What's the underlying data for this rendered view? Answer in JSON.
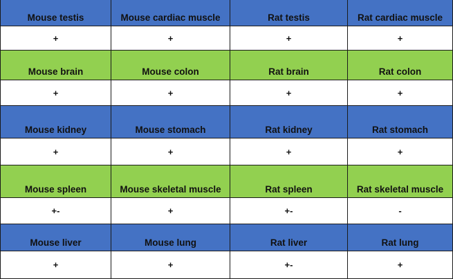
{
  "colors": {
    "blue_header": "#4472c4",
    "green_header": "#92d050"
  },
  "rows": [
    {
      "style": "blue",
      "labels": [
        "Mouse testis",
        "Mouse cardiac muscle",
        "Rat testis",
        "Rat cardiac muscle"
      ],
      "values": [
        "+",
        "+",
        "+",
        "+"
      ]
    },
    {
      "style": "green",
      "labels": [
        "Mouse brain",
        "Mouse colon",
        "Rat brain",
        "Rat colon"
      ],
      "values": [
        "+",
        "+",
        "+",
        "+"
      ]
    },
    {
      "style": "blue",
      "labels": [
        "Mouse kidney",
        "Mouse stomach",
        "Rat kidney",
        "Rat stomach"
      ],
      "values": [
        "+",
        "+",
        "+",
        "+"
      ]
    },
    {
      "style": "green",
      "labels": [
        "Mouse spleen",
        "Mouse skeletal muscle",
        "Rat spleen",
        "Rat skeletal muscle"
      ],
      "values": [
        "+-",
        "+",
        "+-",
        "-"
      ]
    },
    {
      "style": "blue",
      "labels": [
        "Mouse liver",
        "Mouse lung",
        "Rat liver",
        "Rat lung"
      ],
      "values": [
        "+",
        "+",
        "+-",
        "+"
      ]
    }
  ]
}
